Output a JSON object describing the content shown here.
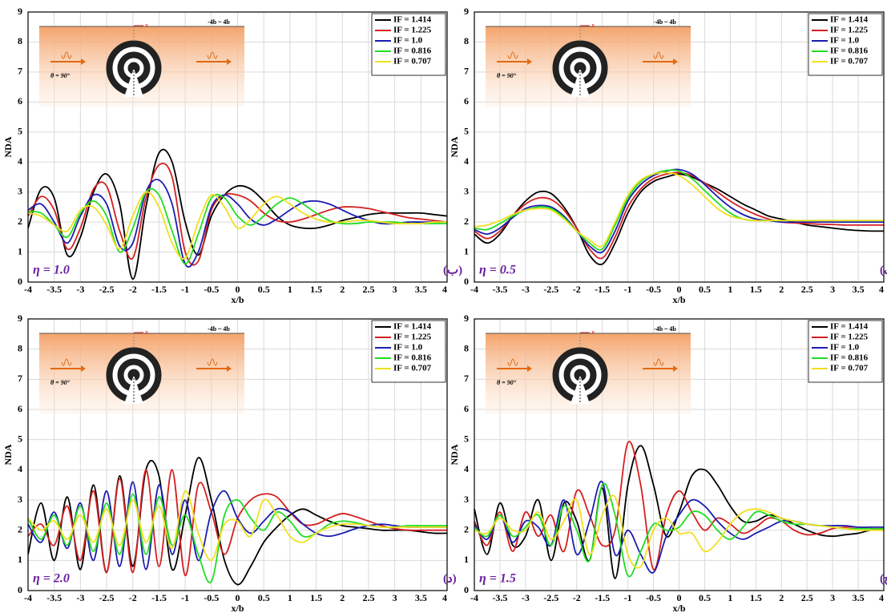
{
  "chart_data": [
    {
      "type": "line",
      "x_label": "x/b",
      "y_label": "NDA",
      "panel_label": "η = 1.0",
      "panel_tag": "(ب)",
      "inset": {
        "angle": "θ = 90°",
        "range": "-4b ~ 4b",
        "axis": "x"
      },
      "legend": "upper right",
      "grid": true,
      "xlim": [
        -4,
        4
      ],
      "xticks": [
        -4,
        -3.5,
        -3,
        -2.5,
        -2,
        -1.5,
        -1,
        -0.5,
        0,
        0.5,
        1,
        1.5,
        2,
        2.5,
        3,
        3.5,
        4
      ],
      "ylim": [
        0,
        9
      ],
      "yticks": [
        0,
        1,
        2,
        3,
        4,
        5,
        6,
        7,
        8,
        9
      ],
      "x": [
        -4,
        -3.75,
        -3.5,
        -3.25,
        -3,
        -2.75,
        -2.5,
        -2.25,
        -2,
        -1.75,
        -1.5,
        -1.25,
        -1,
        -0.75,
        -0.5,
        -0.25,
        0,
        0.25,
        0.5,
        0.75,
        1,
        1.25,
        1.5,
        1.75,
        2,
        2.25,
        2.5,
        2.75,
        3,
        3.25,
        3.5,
        3.75,
        4
      ],
      "series": [
        {
          "name": "IF = 1.414",
          "color": "#000000",
          "values": [
            1.8,
            3.1,
            2.8,
            0.9,
            1.5,
            3.0,
            3.6,
            2.6,
            0.1,
            2.5,
            4.3,
            4.0,
            2.0,
            0.9,
            2.2,
            2.9,
            3.2,
            3.1,
            2.7,
            2.2,
            1.9,
            1.8,
            1.8,
            1.9,
            2.05,
            2.15,
            2.25,
            2.3,
            2.3,
            2.3,
            2.3,
            2.25,
            2.2
          ]
        },
        {
          "name": "IF = 1.225",
          "color": "#d42020",
          "values": [
            2.2,
            2.85,
            2.4,
            1.1,
            1.8,
            3.1,
            3.2,
            1.7,
            0.8,
            2.8,
            3.9,
            3.5,
            1.0,
            0.7,
            2.4,
            2.9,
            2.9,
            2.7,
            2.3,
            2.05,
            2.0,
            2.1,
            2.25,
            2.4,
            2.5,
            2.5,
            2.45,
            2.35,
            2.25,
            2.15,
            2.1,
            2.05,
            2.0
          ]
        },
        {
          "name": "IF = 1.0",
          "color": "#1c1cb0",
          "values": [
            2.4,
            2.6,
            2.0,
            1.3,
            2.2,
            2.9,
            2.6,
            1.2,
            1.3,
            3.0,
            3.4,
            2.6,
            0.6,
            1.0,
            2.5,
            2.9,
            2.6,
            2.1,
            1.9,
            2.1,
            2.4,
            2.65,
            2.7,
            2.6,
            2.4,
            2.2,
            2.05,
            1.95,
            1.95,
            2.0,
            2.0,
            2.0,
            2.0
          ]
        },
        {
          "name": "IF = 0.816",
          "color": "#22dd22",
          "values": [
            2.35,
            2.3,
            1.9,
            1.5,
            2.3,
            2.7,
            2.2,
            1.0,
            1.8,
            3.0,
            2.9,
            1.7,
            0.6,
            1.6,
            2.8,
            2.8,
            2.2,
            1.9,
            2.2,
            2.6,
            2.8,
            2.6,
            2.3,
            2.05,
            1.95,
            1.95,
            2.0,
            2.0,
            2.0,
            1.95,
            1.95,
            1.95,
            1.95
          ]
        },
        {
          "name": "IF = 0.707",
          "color": "#f0e020",
          "values": [
            2.3,
            2.2,
            1.9,
            1.7,
            2.4,
            2.5,
            1.9,
            1.1,
            2.2,
            3.0,
            2.5,
            1.3,
            0.8,
            2.0,
            2.9,
            2.5,
            1.8,
            2.1,
            2.6,
            2.85,
            2.6,
            2.3,
            2.1,
            2.0,
            2.0,
            2.05,
            2.05,
            2.0,
            1.95,
            1.95,
            1.95,
            2.0,
            2.0
          ]
        }
      ]
    },
    {
      "type": "line",
      "x_label": "x/b",
      "y_label": "NDA",
      "panel_label": "η = 0.5",
      "panel_tag": "(الف)",
      "inset": {
        "angle": "θ = 90°",
        "range": "-4b ~ 4b",
        "axis": "x"
      },
      "legend": "upper right",
      "grid": true,
      "xlim": [
        -4,
        4
      ],
      "xticks": [
        -4,
        -3.5,
        -3,
        -2.5,
        -2,
        -1.5,
        -1,
        -0.5,
        0,
        0.5,
        1,
        1.5,
        2,
        2.5,
        3,
        3.5,
        4
      ],
      "ylim": [
        0,
        9
      ],
      "yticks": [
        0,
        1,
        2,
        3,
        4,
        5,
        6,
        7,
        8,
        9
      ],
      "x": [
        -4,
        -3.75,
        -3.5,
        -3.25,
        -3,
        -2.75,
        -2.5,
        -2.25,
        -2,
        -1.75,
        -1.5,
        -1.25,
        -1,
        -0.75,
        -0.5,
        -0.25,
        0,
        0.25,
        0.5,
        0.75,
        1,
        1.25,
        1.5,
        1.75,
        2,
        2.25,
        2.5,
        2.75,
        3,
        3.25,
        3.5,
        3.75,
        4
      ],
      "series": [
        {
          "name": "IF = 1.414",
          "color": "#000000",
          "values": [
            1.6,
            1.3,
            1.6,
            2.2,
            2.7,
            3.0,
            2.95,
            2.5,
            1.8,
            0.9,
            0.6,
            1.3,
            2.3,
            3.0,
            3.35,
            3.5,
            3.6,
            3.5,
            3.3,
            3.1,
            2.85,
            2.6,
            2.4,
            2.2,
            2.1,
            2.0,
            1.9,
            1.85,
            1.8,
            1.75,
            1.72,
            1.7,
            1.7
          ]
        },
        {
          "name": "IF = 1.225",
          "color": "#d42020",
          "values": [
            1.7,
            1.45,
            1.7,
            2.2,
            2.6,
            2.8,
            2.75,
            2.4,
            1.8,
            1.1,
            0.8,
            1.5,
            2.5,
            3.1,
            3.45,
            3.6,
            3.65,
            3.55,
            3.3,
            3.0,
            2.7,
            2.45,
            2.25,
            2.1,
            2.0,
            1.97,
            1.95,
            1.93,
            1.92,
            1.9,
            1.9,
            1.9,
            1.9
          ]
        },
        {
          "name": "IF = 1.0",
          "color": "#1c1cb0",
          "values": [
            1.75,
            1.6,
            1.8,
            2.15,
            2.45,
            2.55,
            2.5,
            2.2,
            1.7,
            1.2,
            1.0,
            1.7,
            2.7,
            3.25,
            3.55,
            3.7,
            3.75,
            3.6,
            3.25,
            2.85,
            2.5,
            2.25,
            2.1,
            2.05,
            2.0,
            2.0,
            2.0,
            2.0,
            2.0,
            2.0,
            2.0,
            2.0,
            2.0
          ]
        },
        {
          "name": "IF = 0.816",
          "color": "#22dd22",
          "values": [
            1.8,
            1.75,
            1.95,
            2.2,
            2.4,
            2.5,
            2.45,
            2.15,
            1.7,
            1.3,
            1.1,
            1.9,
            2.8,
            3.35,
            3.6,
            3.72,
            3.7,
            3.45,
            3.05,
            2.65,
            2.3,
            2.1,
            2.05,
            2.05,
            2.05,
            2.05,
            2.05,
            2.05,
            2.05,
            2.05,
            2.05,
            2.05,
            2.05
          ]
        },
        {
          "name": "IF = 0.707",
          "color": "#f0e020",
          "values": [
            1.85,
            1.9,
            2.05,
            2.25,
            2.4,
            2.45,
            2.4,
            2.1,
            1.7,
            1.4,
            1.2,
            2.0,
            2.9,
            3.4,
            3.6,
            3.65,
            3.55,
            3.25,
            2.85,
            2.45,
            2.2,
            2.1,
            2.05,
            2.05,
            2.05,
            2.05,
            2.05,
            2.05,
            2.05,
            2.05,
            2.05,
            2.05,
            2.05
          ]
        }
      ]
    },
    {
      "type": "line",
      "x_label": "x/b",
      "y_label": "NDA",
      "panel_label": "η = 2.0",
      "panel_tag": "(د)",
      "inset": {
        "angle": "θ = 90°",
        "range": "-4b ~ 4b",
        "axis": "x"
      },
      "legend": "upper right",
      "grid": true,
      "xlim": [
        -4,
        4
      ],
      "xticks": [
        -4,
        -3.5,
        -3,
        -2.5,
        -2,
        -1.5,
        -1,
        -0.5,
        0,
        0.5,
        1,
        1.5,
        2,
        2.5,
        3,
        3.5,
        4
      ],
      "ylim": [
        0,
        9
      ],
      "yticks": [
        0,
        1,
        2,
        3,
        4,
        5,
        6,
        7,
        8,
        9
      ],
      "x": [
        -4,
        -3.75,
        -3.5,
        -3.25,
        -3,
        -2.75,
        -2.5,
        -2.25,
        -2,
        -1.75,
        -1.5,
        -1.25,
        -1,
        -0.75,
        -0.5,
        -0.25,
        0,
        0.25,
        0.5,
        0.75,
        1,
        1.25,
        1.5,
        1.75,
        2,
        2.25,
        2.5,
        2.75,
        3,
        3.25,
        3.5,
        3.75,
        4
      ],
      "series": [
        {
          "name": "IF = 1.414",
          "color": "#000000",
          "values": [
            1.2,
            2.9,
            1.0,
            3.1,
            0.7,
            3.5,
            0.6,
            3.8,
            0.8,
            4.0,
            3.8,
            0.7,
            2.5,
            4.4,
            3.0,
            1.0,
            0.2,
            0.8,
            1.6,
            2.1,
            2.5,
            2.7,
            2.5,
            2.3,
            2.15,
            2.1,
            2.05,
            2.0,
            2.0,
            2.0,
            1.95,
            1.9,
            1.9
          ]
        },
        {
          "name": "IF = 1.225",
          "color": "#d42020",
          "values": [
            1.8,
            2.2,
            1.5,
            2.8,
            1.0,
            3.3,
            0.6,
            3.7,
            0.6,
            4.0,
            0.8,
            4.0,
            0.5,
            3.5,
            2.6,
            1.2,
            2.4,
            3.0,
            3.2,
            3.1,
            2.6,
            2.2,
            2.2,
            2.4,
            2.55,
            2.45,
            2.3,
            2.15,
            2.05,
            2.0,
            2.0,
            2.0,
            2.0
          ]
        },
        {
          "name": "IF = 1.0",
          "color": "#1c1cb0",
          "values": [
            2.2,
            1.6,
            2.6,
            1.4,
            2.9,
            1.0,
            3.3,
            0.8,
            3.6,
            0.7,
            3.5,
            1.2,
            3.0,
            1.0,
            2.6,
            3.3,
            2.4,
            1.9,
            2.3,
            2.7,
            2.6,
            2.2,
            1.9,
            1.8,
            1.9,
            2.05,
            2.15,
            2.2,
            2.15,
            2.1,
            2.1,
            2.1,
            2.1
          ]
        },
        {
          "name": "IF = 0.816",
          "color": "#22dd22",
          "values": [
            2.4,
            1.7,
            2.5,
            1.5,
            2.8,
            1.3,
            2.9,
            1.2,
            3.2,
            1.2,
            3.1,
            1.5,
            2.5,
            1.2,
            0.3,
            2.5,
            3.0,
            2.4,
            2.0,
            2.6,
            2.3,
            1.8,
            1.9,
            2.2,
            2.3,
            2.25,
            2.15,
            2.1,
            2.1,
            2.15,
            2.15,
            2.15,
            2.15
          ]
        },
        {
          "name": "IF = 0.707",
          "color": "#f0e020",
          "values": [
            2.4,
            2.0,
            2.3,
            1.7,
            2.5,
            1.6,
            2.7,
            1.5,
            3.0,
            1.6,
            2.8,
            1.4,
            3.3,
            1.9,
            1.0,
            2.2,
            2.3,
            1.8,
            3.0,
            2.5,
            1.8,
            1.6,
            1.9,
            2.1,
            2.2,
            2.2,
            2.15,
            2.1,
            2.1,
            2.1,
            2.1,
            2.1,
            2.1
          ]
        }
      ]
    },
    {
      "type": "line",
      "x_label": "x/b",
      "y_label": "NDA",
      "panel_label": "η = 1.5",
      "panel_tag": "(ج)",
      "inset": {
        "angle": "θ = 90°",
        "range": "-4b ~ 4b",
        "axis": "x"
      },
      "legend": "upper right",
      "grid": true,
      "xlim": [
        -4,
        4
      ],
      "xticks": [
        -4,
        -3.5,
        -3,
        -2.5,
        -2,
        -1.5,
        -1,
        -0.5,
        0,
        0.5,
        1,
        1.5,
        2,
        2.5,
        3,
        3.5,
        4
      ],
      "ylim": [
        0,
        9
      ],
      "yticks": [
        0,
        1,
        2,
        3,
        4,
        5,
        6,
        7,
        8,
        9
      ],
      "x": [
        -4,
        -3.75,
        -3.5,
        -3.25,
        -3,
        -2.75,
        -2.5,
        -2.25,
        -2,
        -1.75,
        -1.5,
        -1.25,
        -1,
        -0.75,
        -0.5,
        -0.25,
        0,
        0.25,
        0.5,
        0.75,
        1,
        1.25,
        1.5,
        1.75,
        2,
        2.25,
        2.5,
        2.75,
        3,
        3.25,
        3.5,
        3.75,
        4
      ],
      "series": [
        {
          "name": "IF = 1.414",
          "color": "#000000",
          "values": [
            2.7,
            1.2,
            2.9,
            1.5,
            1.8,
            3.0,
            1.0,
            2.9,
            2.3,
            1.0,
            3.4,
            0.4,
            3.5,
            4.8,
            3.5,
            1.8,
            2.6,
            3.8,
            4.0,
            3.5,
            2.8,
            2.3,
            2.3,
            2.5,
            2.4,
            2.2,
            2.0,
            1.85,
            1.8,
            1.85,
            1.9,
            2.0,
            2.0
          ]
        },
        {
          "name": "IF = 1.225",
          "color": "#d42020",
          "values": [
            2.3,
            1.5,
            2.6,
            1.3,
            2.6,
            1.8,
            2.5,
            1.3,
            3.3,
            2.5,
            1.5,
            2.0,
            4.9,
            3.5,
            0.7,
            2.5,
            3.3,
            2.6,
            2.0,
            2.4,
            2.2,
            1.9,
            2.1,
            2.4,
            2.3,
            2.0,
            1.85,
            1.9,
            2.05,
            2.1,
            2.1,
            2.05,
            2.0
          ]
        },
        {
          "name": "IF = 1.0",
          "color": "#1c1cb0",
          "values": [
            2.2,
            1.7,
            2.5,
            1.6,
            2.3,
            2.1,
            1.5,
            3.0,
            1.2,
            2.3,
            3.6,
            1.2,
            2.0,
            1.2,
            0.6,
            1.8,
            2.5,
            3.0,
            2.8,
            2.3,
            1.9,
            1.7,
            1.9,
            2.1,
            2.3,
            2.3,
            2.2,
            2.15,
            2.15,
            2.15,
            2.1,
            2.1,
            2.1
          ]
        },
        {
          "name": "IF = 0.816",
          "color": "#22dd22",
          "values": [
            2.1,
            1.8,
            2.5,
            1.8,
            2.1,
            2.5,
            1.5,
            2.8,
            2.0,
            1.0,
            3.5,
            2.5,
            0.5,
            1.3,
            2.2,
            2.0,
            2.1,
            2.6,
            2.5,
            2.0,
            1.7,
            2.1,
            2.6,
            2.5,
            2.3,
            2.2,
            2.2,
            2.15,
            2.1,
            2.05,
            2.05,
            2.05,
            2.05
          ]
        },
        {
          "name": "IF = 0.707",
          "color": "#f0e020",
          "values": [
            2.0,
            1.9,
            2.4,
            2.0,
            2.0,
            2.6,
            1.7,
            2.3,
            3.0,
            1.2,
            2.5,
            3.1,
            1.2,
            0.8,
            2.0,
            2.4,
            1.9,
            1.9,
            1.3,
            1.6,
            2.2,
            2.6,
            2.7,
            2.6,
            2.4,
            2.3,
            2.2,
            2.15,
            2.1,
            2.05,
            2.0,
            2.0,
            2.0
          ]
        }
      ]
    }
  ]
}
